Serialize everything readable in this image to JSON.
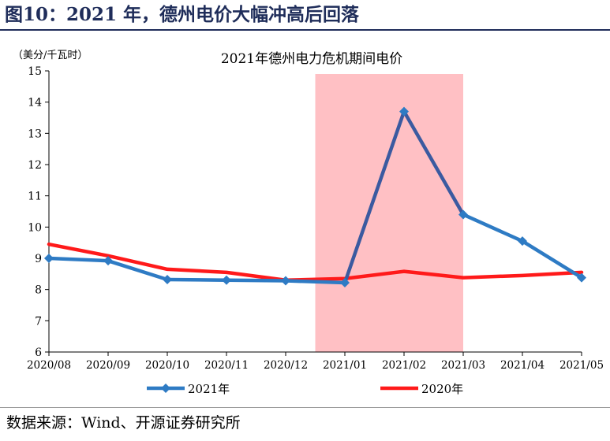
{
  "figure": {
    "title": "图10：2021 年，德州电价大幅冲高后回落",
    "source": "数据来源：Wind、开源证券研究所"
  },
  "chart_data": {
    "type": "line",
    "title": "2021年德州电力危机期间电价",
    "ylabel": "（美分/千瓦时）",
    "xlabel": "",
    "categories": [
      "2020/08",
      "2020/09",
      "2020/10",
      "2020/11",
      "2020/12",
      "2021/01",
      "2021/02",
      "2021/03",
      "2021/04",
      "2021/05"
    ],
    "ylim": [
      6,
      15
    ],
    "yticks": [
      6,
      7,
      8,
      9,
      10,
      11,
      12,
      13,
      14,
      15
    ],
    "grid": false,
    "legend_position": "bottom",
    "highlight": {
      "from": "2020/12",
      "to": "2021/03",
      "color": "#ffc0c4"
    },
    "series": [
      {
        "name": "2021年",
        "color": "#2e7bc4",
        "segment_color": "#3b5aa0",
        "marker": "diamond",
        "values": [
          9.0,
          8.92,
          8.32,
          8.3,
          8.28,
          8.22,
          13.7,
          10.4,
          9.55,
          8.38
        ]
      },
      {
        "name": "2020年",
        "color": "#ff1a1a",
        "marker": "none",
        "values": [
          9.45,
          9.08,
          8.65,
          8.55,
          8.3,
          8.35,
          8.58,
          8.38,
          8.45,
          8.55
        ]
      }
    ]
  }
}
